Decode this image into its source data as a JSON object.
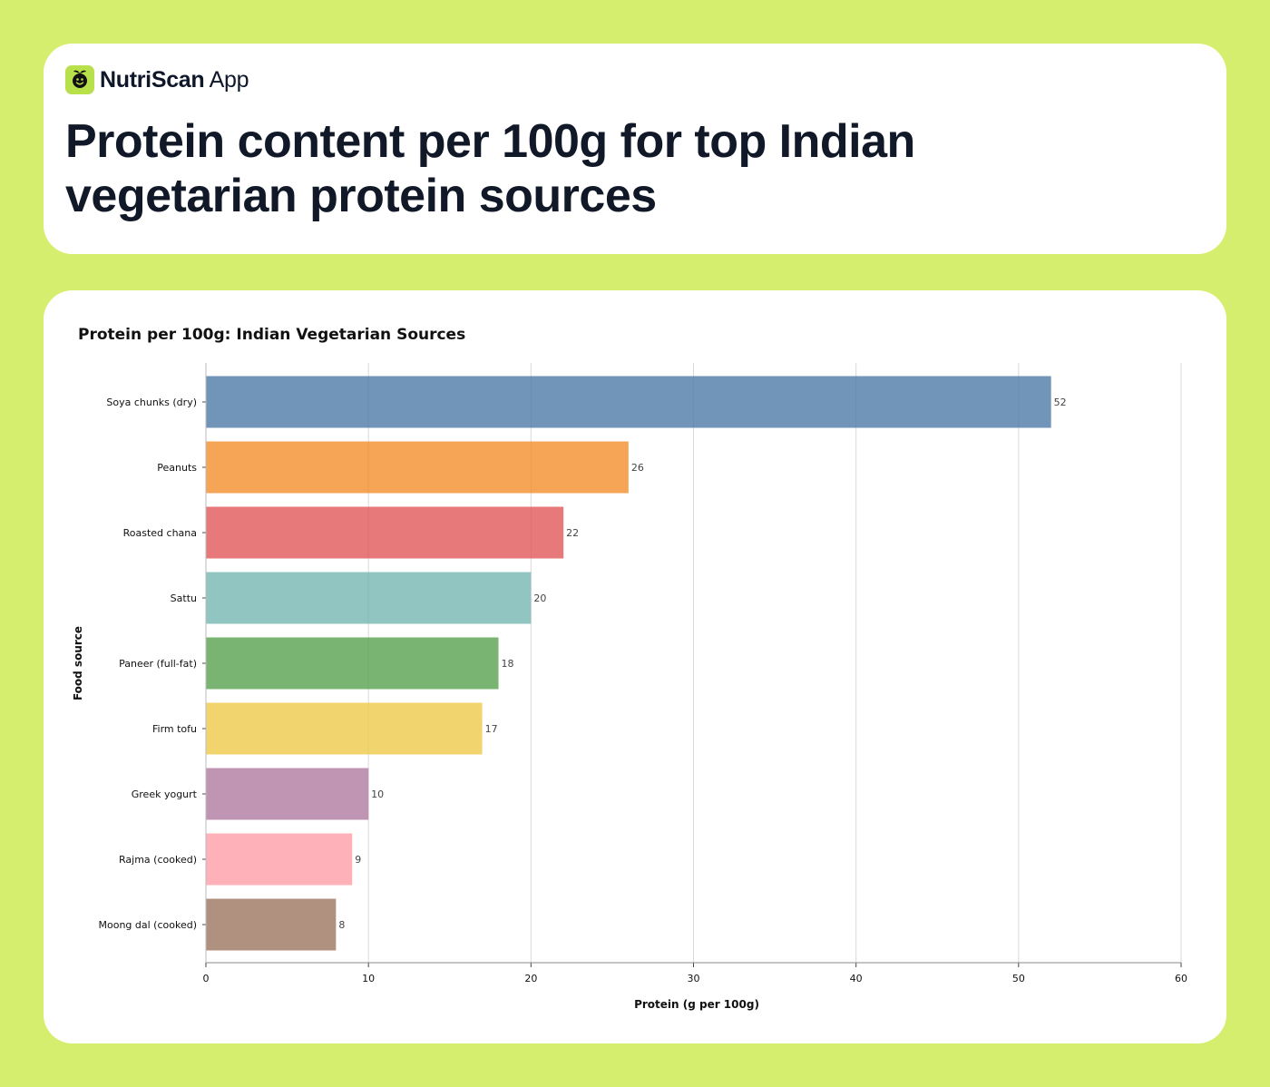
{
  "brand": {
    "name_bold": "NutriScan",
    "name_light": "App",
    "logo_icon": "leaf-face-icon"
  },
  "page": {
    "title": "Protein content per 100g for top Indian vegetarian protein sources"
  },
  "colors": {
    "page_background": "#d6ee6e",
    "card_background": "#ffffff",
    "accent": "#b8e04a"
  },
  "chart_data": {
    "type": "bar",
    "orientation": "horizontal",
    "title": "Protein per 100g: Indian Vegetarian Sources",
    "xlabel": "Protein (g per 100g)",
    "ylabel": "Food source",
    "xlim": [
      0,
      60
    ],
    "x_ticks": [
      0,
      10,
      20,
      30,
      40,
      50,
      60
    ],
    "grid": "vertical",
    "categories": [
      "Soya chunks (dry)",
      "Peanuts",
      "Roasted chana",
      "Sattu",
      "Paneer (full-fat)",
      "Firm tofu",
      "Greek yogurt",
      "Rajma (cooked)",
      "Moong dal (cooked)"
    ],
    "values": [
      52,
      26,
      22,
      20,
      18,
      17,
      10,
      9,
      8
    ],
    "bar_colors": [
      "#4e79a7",
      "#f28e2b",
      "#e15759",
      "#76b7b2",
      "#59a14f",
      "#edc948",
      "#b07aa1",
      "#ff9da7",
      "#9c755f"
    ]
  }
}
